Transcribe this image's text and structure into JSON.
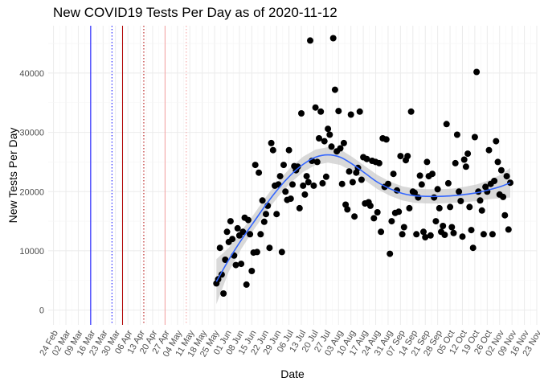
{
  "chart_data": {
    "type": "scatter",
    "title": "New COVID19 Tests Per Day as of 2020-11-12",
    "xlabel": "Date",
    "ylabel": "New Tests Per Day",
    "xlim": [
      "2020-02-21",
      "2020-11-23"
    ],
    "ylim": [
      -2500,
      48000
    ],
    "y_ticks": [
      0,
      10000,
      20000,
      30000,
      40000
    ],
    "x_tick_dates": [
      "2020-02-24",
      "2020-03-02",
      "2020-03-09",
      "2020-03-16",
      "2020-03-23",
      "2020-03-30",
      "2020-04-06",
      "2020-04-13",
      "2020-04-20",
      "2020-04-27",
      "2020-05-04",
      "2020-05-11",
      "2020-05-18",
      "2020-05-25",
      "2020-06-01",
      "2020-06-08",
      "2020-06-15",
      "2020-06-22",
      "2020-06-29",
      "2020-07-06",
      "2020-07-13",
      "2020-07-20",
      "2020-07-27",
      "2020-08-03",
      "2020-08-10",
      "2020-08-17",
      "2020-08-24",
      "2020-08-31",
      "2020-09-07",
      "2020-09-14",
      "2020-09-21",
      "2020-09-28",
      "2020-10-05",
      "2020-10-12",
      "2020-10-19",
      "2020-10-26",
      "2020-11-02",
      "2020-11-09",
      "2020-11-16",
      "2020-11-23"
    ],
    "x_tick_labels": [
      "24 Feb",
      "02 Mar",
      "09 Mar",
      "16 Mar",
      "23 Mar",
      "30 Mar",
      "06 Apr",
      "13 Apr",
      "20 Apr",
      "27 Apr",
      "04 May",
      "11 May",
      "18 May",
      "25 May",
      "01 Jun",
      "08 Jun",
      "15 Jun",
      "22 Jun",
      "29 Jun",
      "06 Jul",
      "13 Jul",
      "20 Jul",
      "27 Jul",
      "03 Aug",
      "10 Aug",
      "17 Aug",
      "24 Aug",
      "31 Aug",
      "07 Sep",
      "14 Sep",
      "21 Sep",
      "28 Sep",
      "05 Oct",
      "12 Oct",
      "19 Oct",
      "26 Oct",
      "02 Nov",
      "09 Nov",
      "16 Nov",
      "23 Nov"
    ],
    "grid": true,
    "vlines": [
      {
        "date": "2020-03-16",
        "color": "#0000ff",
        "style": "solid"
      },
      {
        "date": "2020-03-28",
        "color": "#0000ff",
        "style": "dotted"
      },
      {
        "date": "2020-04-03",
        "color": "#b00000",
        "style": "solid"
      },
      {
        "date": "2020-04-15",
        "color": "#b00000",
        "style": "dotted"
      },
      {
        "date": "2020-04-27",
        "color": "#f4a0a0",
        "style": "solid"
      },
      {
        "date": "2020-05-09",
        "color": "#f4a0a0",
        "style": "dotted"
      }
    ],
    "points_color": "#000000",
    "smooth_color": "#3366ff",
    "ribbon_color": "#cccccc",
    "points": [
      {
        "x": "2020-05-26",
        "y": 4500
      },
      {
        "x": "2020-05-27",
        "y": 5200
      },
      {
        "x": "2020-05-28",
        "y": 10500
      },
      {
        "x": "2020-05-29",
        "y": 6000
      },
      {
        "x": "2020-05-30",
        "y": 2800
      },
      {
        "x": "2020-05-31",
        "y": 8500
      },
      {
        "x": "2020-06-01",
        "y": 13200
      },
      {
        "x": "2020-06-02",
        "y": 11500
      },
      {
        "x": "2020-06-03",
        "y": 15000
      },
      {
        "x": "2020-06-04",
        "y": 12000
      },
      {
        "x": "2020-06-05",
        "y": 9200
      },
      {
        "x": "2020-06-06",
        "y": 7600
      },
      {
        "x": "2020-06-07",
        "y": 13800
      },
      {
        "x": "2020-06-08",
        "y": 12600
      },
      {
        "x": "2020-06-09",
        "y": 7800
      },
      {
        "x": "2020-06-10",
        "y": 13200
      },
      {
        "x": "2020-06-11",
        "y": 15600
      },
      {
        "x": "2020-06-12",
        "y": 4300
      },
      {
        "x": "2020-06-13",
        "y": 15200
      },
      {
        "x": "2020-06-14",
        "y": 12800
      },
      {
        "x": "2020-06-15",
        "y": 6600
      },
      {
        "x": "2020-06-16",
        "y": 9700
      },
      {
        "x": "2020-06-17",
        "y": 24500
      },
      {
        "x": "2020-06-18",
        "y": 9800
      },
      {
        "x": "2020-06-19",
        "y": 23200
      },
      {
        "x": "2020-06-20",
        "y": 12800
      },
      {
        "x": "2020-06-21",
        "y": 18500
      },
      {
        "x": "2020-06-22",
        "y": 14900
      },
      {
        "x": "2020-06-23",
        "y": 16200
      },
      {
        "x": "2020-06-24",
        "y": 17600
      },
      {
        "x": "2020-06-25",
        "y": 10500
      },
      {
        "x": "2020-06-26",
        "y": 28200
      },
      {
        "x": "2020-06-27",
        "y": 27000
      },
      {
        "x": "2020-06-28",
        "y": 21000
      },
      {
        "x": "2020-06-29",
        "y": 16200
      },
      {
        "x": "2020-06-30",
        "y": 21200
      },
      {
        "x": "2020-07-01",
        "y": 22600
      },
      {
        "x": "2020-07-02",
        "y": 9800
      },
      {
        "x": "2020-07-03",
        "y": 24500
      },
      {
        "x": "2020-07-04",
        "y": 20000
      },
      {
        "x": "2020-07-05",
        "y": 18600
      },
      {
        "x": "2020-07-06",
        "y": 27000
      },
      {
        "x": "2020-07-07",
        "y": 18800
      },
      {
        "x": "2020-07-08",
        "y": 21200
      },
      {
        "x": "2020-07-09",
        "y": 24300
      },
      {
        "x": "2020-07-10",
        "y": 23600
      },
      {
        "x": "2020-07-11",
        "y": 24200
      },
      {
        "x": "2020-07-12",
        "y": 17200
      },
      {
        "x": "2020-07-13",
        "y": 33200
      },
      {
        "x": "2020-07-14",
        "y": 21000
      },
      {
        "x": "2020-07-15",
        "y": 19500
      },
      {
        "x": "2020-07-16",
        "y": 22600
      },
      {
        "x": "2020-07-17",
        "y": 21600
      },
      {
        "x": "2020-07-18",
        "y": 45500
      },
      {
        "x": "2020-07-19",
        "y": 25200
      },
      {
        "x": "2020-07-20",
        "y": 21000
      },
      {
        "x": "2020-07-21",
        "y": 34200
      },
      {
        "x": "2020-07-22",
        "y": 25000
      },
      {
        "x": "2020-07-23",
        "y": 29000
      },
      {
        "x": "2020-07-24",
        "y": 33500
      },
      {
        "x": "2020-07-25",
        "y": 21400
      },
      {
        "x": "2020-07-26",
        "y": 28500
      },
      {
        "x": "2020-07-27",
        "y": 22500
      },
      {
        "x": "2020-07-28",
        "y": 30600
      },
      {
        "x": "2020-07-29",
        "y": 29600
      },
      {
        "x": "2020-07-30",
        "y": 27600
      },
      {
        "x": "2020-07-31",
        "y": 45900
      },
      {
        "x": "2020-08-01",
        "y": 37200
      },
      {
        "x": "2020-08-02",
        "y": 26800
      },
      {
        "x": "2020-08-03",
        "y": 33600
      },
      {
        "x": "2020-08-04",
        "y": 27300
      },
      {
        "x": "2020-08-05",
        "y": 21300
      },
      {
        "x": "2020-08-06",
        "y": 28200
      },
      {
        "x": "2020-08-07",
        "y": 17800
      },
      {
        "x": "2020-08-08",
        "y": 17000
      },
      {
        "x": "2020-08-09",
        "y": 23400
      },
      {
        "x": "2020-08-10",
        "y": 33000
      },
      {
        "x": "2020-08-11",
        "y": 21600
      },
      {
        "x": "2020-08-12",
        "y": 15800
      },
      {
        "x": "2020-08-13",
        "y": 23200
      },
      {
        "x": "2020-08-14",
        "y": 24000
      },
      {
        "x": "2020-08-15",
        "y": 33500
      },
      {
        "x": "2020-08-16",
        "y": 22000
      },
      {
        "x": "2020-08-17",
        "y": 25800
      },
      {
        "x": "2020-08-18",
        "y": 18000
      },
      {
        "x": "2020-08-19",
        "y": 25500
      },
      {
        "x": "2020-08-20",
        "y": 18200
      },
      {
        "x": "2020-08-21",
        "y": 17600
      },
      {
        "x": "2020-08-22",
        "y": 25200
      },
      {
        "x": "2020-08-23",
        "y": 15500
      },
      {
        "x": "2020-08-24",
        "y": 25000
      },
      {
        "x": "2020-08-25",
        "y": 16500
      },
      {
        "x": "2020-08-26",
        "y": 24800
      },
      {
        "x": "2020-08-27",
        "y": 13200
      },
      {
        "x": "2020-08-28",
        "y": 29000
      },
      {
        "x": "2020-08-29",
        "y": 20800
      },
      {
        "x": "2020-08-30",
        "y": 28800
      },
      {
        "x": "2020-08-31",
        "y": 21300
      },
      {
        "x": "2020-09-01",
        "y": 9500
      },
      {
        "x": "2020-09-02",
        "y": 15000
      },
      {
        "x": "2020-09-03",
        "y": 23000
      },
      {
        "x": "2020-09-04",
        "y": 16400
      },
      {
        "x": "2020-09-05",
        "y": 20200
      },
      {
        "x": "2020-09-06",
        "y": 16600
      },
      {
        "x": "2020-09-07",
        "y": 26000
      },
      {
        "x": "2020-09-08",
        "y": 12800
      },
      {
        "x": "2020-09-09",
        "y": 14000
      },
      {
        "x": "2020-09-10",
        "y": 25300
      },
      {
        "x": "2020-09-11",
        "y": 26000
      },
      {
        "x": "2020-09-12",
        "y": 17200
      },
      {
        "x": "2020-09-13",
        "y": 33500
      },
      {
        "x": "2020-09-14",
        "y": 20000
      },
      {
        "x": "2020-09-15",
        "y": 19800
      },
      {
        "x": "2020-09-16",
        "y": 12800
      },
      {
        "x": "2020-09-17",
        "y": 19000
      },
      {
        "x": "2020-09-18",
        "y": 22700
      },
      {
        "x": "2020-09-19",
        "y": 21200
      },
      {
        "x": "2020-09-20",
        "y": 13200
      },
      {
        "x": "2020-09-21",
        "y": 12300
      },
      {
        "x": "2020-09-22",
        "y": 25000
      },
      {
        "x": "2020-09-23",
        "y": 22600
      },
      {
        "x": "2020-09-24",
        "y": 12600
      },
      {
        "x": "2020-09-25",
        "y": 23000
      },
      {
        "x": "2020-09-26",
        "y": 19000
      },
      {
        "x": "2020-09-27",
        "y": 15000
      },
      {
        "x": "2020-09-28",
        "y": 20400
      },
      {
        "x": "2020-09-29",
        "y": 17200
      },
      {
        "x": "2020-09-30",
        "y": 13200
      },
      {
        "x": "2020-10-01",
        "y": 14200
      },
      {
        "x": "2020-10-02",
        "y": 12700
      },
      {
        "x": "2020-10-03",
        "y": 31400
      },
      {
        "x": "2020-10-04",
        "y": 21400
      },
      {
        "x": "2020-10-05",
        "y": 17400
      },
      {
        "x": "2020-10-06",
        "y": 14000
      },
      {
        "x": "2020-10-07",
        "y": 13000
      },
      {
        "x": "2020-10-08",
        "y": 24800
      },
      {
        "x": "2020-10-09",
        "y": 29600
      },
      {
        "x": "2020-10-10",
        "y": 20000
      },
      {
        "x": "2020-10-11",
        "y": 18400
      },
      {
        "x": "2020-10-12",
        "y": 12400
      },
      {
        "x": "2020-10-13",
        "y": 25400
      },
      {
        "x": "2020-10-14",
        "y": 24200
      },
      {
        "x": "2020-10-15",
        "y": 26400
      },
      {
        "x": "2020-10-16",
        "y": 17400
      },
      {
        "x": "2020-10-17",
        "y": 13500
      },
      {
        "x": "2020-10-18",
        "y": 10500
      },
      {
        "x": "2020-10-19",
        "y": 29200
      },
      {
        "x": "2020-10-20",
        "y": 40200
      },
      {
        "x": "2020-10-21",
        "y": 20000
      },
      {
        "x": "2020-10-22",
        "y": 18500
      },
      {
        "x": "2020-10-23",
        "y": 16800
      },
      {
        "x": "2020-10-24",
        "y": 12800
      },
      {
        "x": "2020-10-25",
        "y": 20800
      },
      {
        "x": "2020-10-26",
        "y": 20000
      },
      {
        "x": "2020-10-27",
        "y": 27000
      },
      {
        "x": "2020-10-28",
        "y": 21300
      },
      {
        "x": "2020-10-29",
        "y": 12800
      },
      {
        "x": "2020-10-30",
        "y": 21800
      },
      {
        "x": "2020-10-31",
        "y": 28500
      },
      {
        "x": "2020-11-01",
        "y": 25000
      },
      {
        "x": "2020-11-02",
        "y": 19500
      },
      {
        "x": "2020-11-03",
        "y": 23600
      },
      {
        "x": "2020-11-04",
        "y": 19100
      },
      {
        "x": "2020-11-05",
        "y": 16000
      },
      {
        "x": "2020-11-06",
        "y": 22600
      },
      {
        "x": "2020-11-07",
        "y": 13600
      },
      {
        "x": "2020-11-08",
        "y": 21500
      }
    ],
    "smooth": [
      {
        "x": "2020-05-26",
        "y": 4800,
        "lo": 1000,
        "hi": 8600
      },
      {
        "x": "2020-06-02",
        "y": 8500,
        "lo": 6500,
        "hi": 10500
      },
      {
        "x": "2020-06-09",
        "y": 11800,
        "lo": 10300,
        "hi": 13300
      },
      {
        "x": "2020-06-16",
        "y": 14800,
        "lo": 13500,
        "hi": 16100
      },
      {
        "x": "2020-06-23",
        "y": 17800,
        "lo": 16500,
        "hi": 19100
      },
      {
        "x": "2020-06-30",
        "y": 20500,
        "lo": 19200,
        "hi": 21800
      },
      {
        "x": "2020-07-07",
        "y": 22800,
        "lo": 21500,
        "hi": 24100
      },
      {
        "x": "2020-07-14",
        "y": 24600,
        "lo": 23300,
        "hi": 25900
      },
      {
        "x": "2020-07-21",
        "y": 25800,
        "lo": 24500,
        "hi": 27100
      },
      {
        "x": "2020-07-28",
        "y": 26200,
        "lo": 24900,
        "hi": 27500
      },
      {
        "x": "2020-08-04",
        "y": 25800,
        "lo": 24500,
        "hi": 27100
      },
      {
        "x": "2020-08-11",
        "y": 24600,
        "lo": 23400,
        "hi": 25800
      },
      {
        "x": "2020-08-18",
        "y": 23100,
        "lo": 21900,
        "hi": 24300
      },
      {
        "x": "2020-08-25",
        "y": 21600,
        "lo": 20400,
        "hi": 22800
      },
      {
        "x": "2020-09-01",
        "y": 20500,
        "lo": 19300,
        "hi": 21700
      },
      {
        "x": "2020-09-08",
        "y": 19700,
        "lo": 18500,
        "hi": 20900
      },
      {
        "x": "2020-09-15",
        "y": 19300,
        "lo": 18100,
        "hi": 20500
      },
      {
        "x": "2020-09-22",
        "y": 19200,
        "lo": 18000,
        "hi": 20400
      },
      {
        "x": "2020-09-29",
        "y": 19200,
        "lo": 18000,
        "hi": 20400
      },
      {
        "x": "2020-10-06",
        "y": 19300,
        "lo": 18100,
        "hi": 20500
      },
      {
        "x": "2020-10-13",
        "y": 19500,
        "lo": 18200,
        "hi": 20800
      },
      {
        "x": "2020-10-20",
        "y": 19800,
        "lo": 18400,
        "hi": 21200
      },
      {
        "x": "2020-10-27",
        "y": 20300,
        "lo": 18700,
        "hi": 21900
      },
      {
        "x": "2020-11-03",
        "y": 20900,
        "lo": 18900,
        "hi": 22900
      },
      {
        "x": "2020-11-08",
        "y": 21500,
        "lo": 19000,
        "hi": 24000
      }
    ]
  }
}
